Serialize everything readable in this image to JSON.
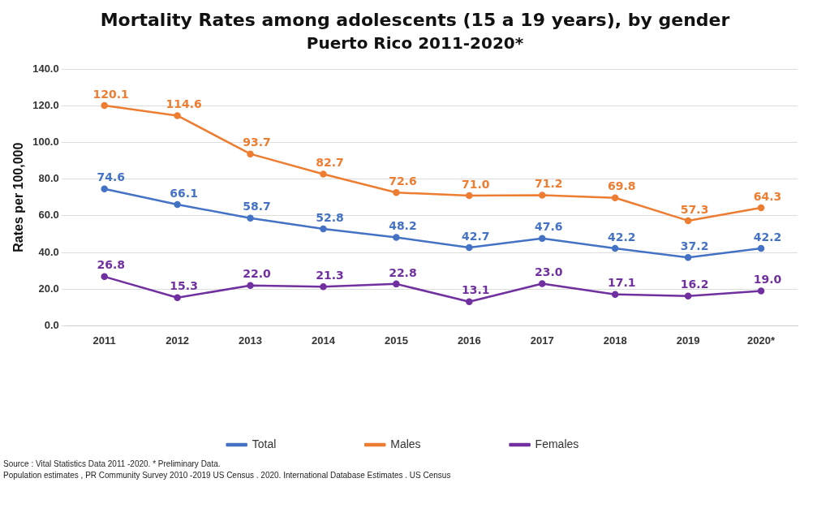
{
  "chart_data": {
    "type": "line",
    "title": "Mortality Rates among adolescents (15 a 19 years), by gender",
    "subtitle": "Puerto Rico 2011-2020*",
    "ylabel": "Rates per 100,000",
    "categories": [
      "2011",
      "2012",
      "2013",
      "2014",
      "2015",
      "2016",
      "2017",
      "2018",
      "2019",
      "2020*"
    ],
    "series": [
      {
        "name": "Total",
        "color": "#4472c4",
        "values": [
          74.6,
          66.1,
          58.7,
          52.8,
          48.2,
          42.7,
          47.6,
          42.2,
          37.2,
          42.2
        ],
        "value_labels": [
          "74.6",
          "66.1",
          "58.7",
          "52.8",
          "48.2",
          "42.7",
          "47.6",
          "42.2",
          "37.2",
          "42.2"
        ]
      },
      {
        "name": "Males",
        "color": "#ed7d31",
        "values": [
          120.1,
          114.6,
          93.7,
          82.7,
          72.6,
          71.0,
          71.2,
          69.8,
          57.3,
          64.3
        ],
        "value_labels": [
          "120.1",
          "114.6",
          "93.7",
          "82.7",
          "72.6",
          "71.0",
          "71.2",
          "69.8",
          "57.3",
          "64.3"
        ]
      },
      {
        "name": "Females",
        "color": "#7030a0",
        "values": [
          26.8,
          15.3,
          22.0,
          21.3,
          22.8,
          13.1,
          23.0,
          17.1,
          16.2,
          19.0
        ],
        "value_labels": [
          "26.8",
          "15.3",
          "22.0",
          "21.3",
          "22.8",
          "13.1",
          "23.0",
          "17.1",
          "16.2",
          "19.0"
        ]
      }
    ],
    "ylim": [
      0,
      140
    ],
    "yticks": [
      {
        "value": 0,
        "label": "0.0"
      },
      {
        "value": 20,
        "label": "20.0"
      },
      {
        "value": 40,
        "label": "40.0"
      },
      {
        "value": 60,
        "label": "60.0"
      },
      {
        "value": 80,
        "label": "80.0"
      },
      {
        "value": 100,
        "label": "100.0"
      },
      {
        "value": 120,
        "label": "120.0"
      },
      {
        "value": 140,
        "label": "140.0"
      }
    ],
    "grid": "y",
    "legend": "bottom",
    "marker": "circle",
    "line_style": "solid",
    "annotations": [
      "Source : Vital Statistics Data 2011 -2020. * Preliminary Data.",
      "Population estimates , PR Community Survey 2010 -2019 US Census . 2020. International Database Estimates . US Census"
    ]
  }
}
